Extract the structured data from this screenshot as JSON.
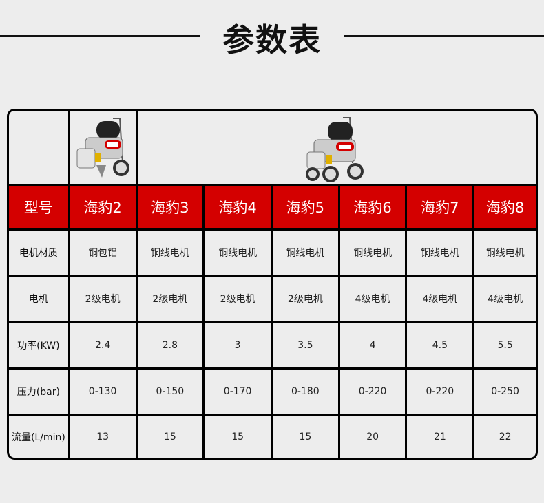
{
  "title": "参数表",
  "header": {
    "label": "型号",
    "models": [
      "海豹2",
      "海豹3",
      "海豹4",
      "海豹5",
      "海豹6",
      "海豹7",
      "海豹8"
    ]
  },
  "rows": [
    {
      "label": "电机材质",
      "values": [
        "铜包铝",
        "铜线电机",
        "铜线电机",
        "铜线电机",
        "铜线电机",
        "铜线电机",
        "铜线电机"
      ]
    },
    {
      "label": "电机",
      "values": [
        "2级电机",
        "2级电机",
        "2级电机",
        "2级电机",
        "4级电机",
        "4级电机",
        "4级电机"
      ]
    },
    {
      "label": "功率(KW)",
      "values": [
        "2.4",
        "2.8",
        "3",
        "3.5",
        "4",
        "4.5",
        "5.5"
      ]
    },
    {
      "label": "压力(bar)",
      "values": [
        "0-130",
        "0-150",
        "0-170",
        "0-180",
        "0-220",
        "0-220",
        "0-250"
      ]
    },
    {
      "label": "流量(L/min)",
      "values": [
        "13",
        "15",
        "15",
        "15",
        "20",
        "21",
        "22"
      ]
    }
  ],
  "colors": {
    "header_bg": "#d40000",
    "border": "#000000",
    "background": "#ededed"
  }
}
